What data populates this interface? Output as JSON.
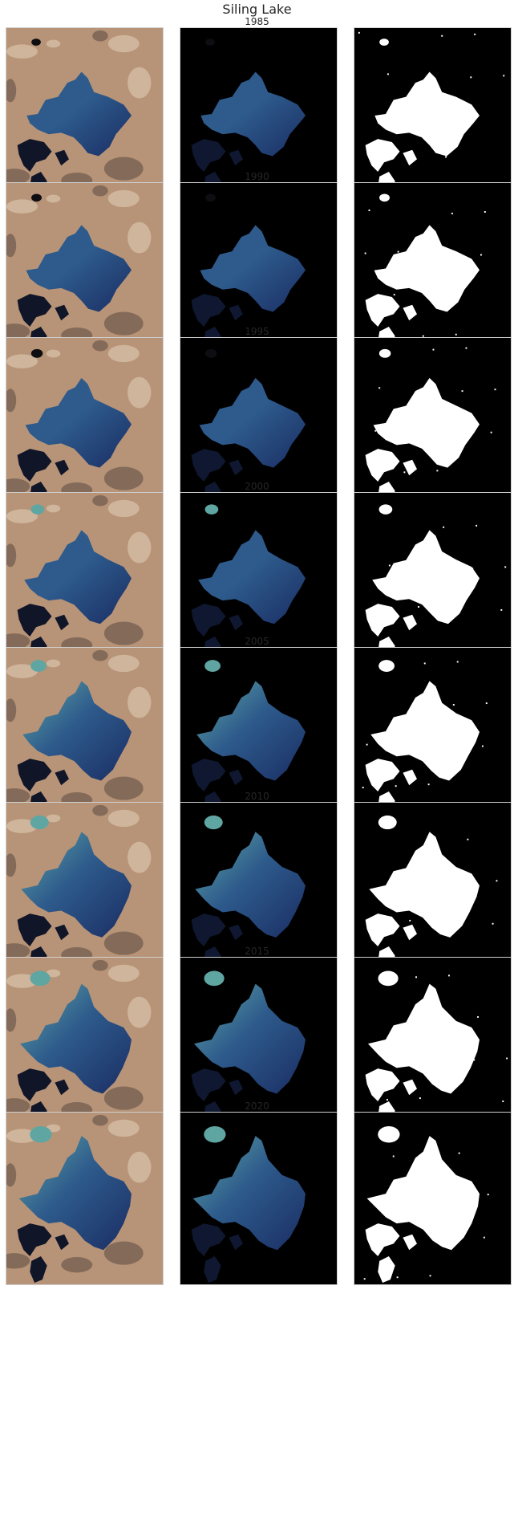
{
  "title": "Siling Lake",
  "rows": [
    {
      "year": "1985",
      "stage": 0.0
    },
    {
      "year": "1990",
      "stage": 0.08
    },
    {
      "year": "1995",
      "stage": 0.18
    },
    {
      "year": "2000",
      "stage": 0.32
    },
    {
      "year": "2005",
      "stage": 0.52
    },
    {
      "year": "2010",
      "stage": 0.72
    },
    {
      "year": "2015",
      "stage": 0.86
    },
    {
      "year": "2020",
      "stage": 1.0
    }
  ],
  "colors": {
    "land_base": "#b79478",
    "land_light": "#d8c3aa",
    "land_dark": "#6e5a4b",
    "water_deep": "#1a2d63",
    "water_mid": "#2e5b8c",
    "water_turquoise": "#5fa6a2",
    "mask_water": "#ffffff",
    "mask_bg": "#000000"
  }
}
